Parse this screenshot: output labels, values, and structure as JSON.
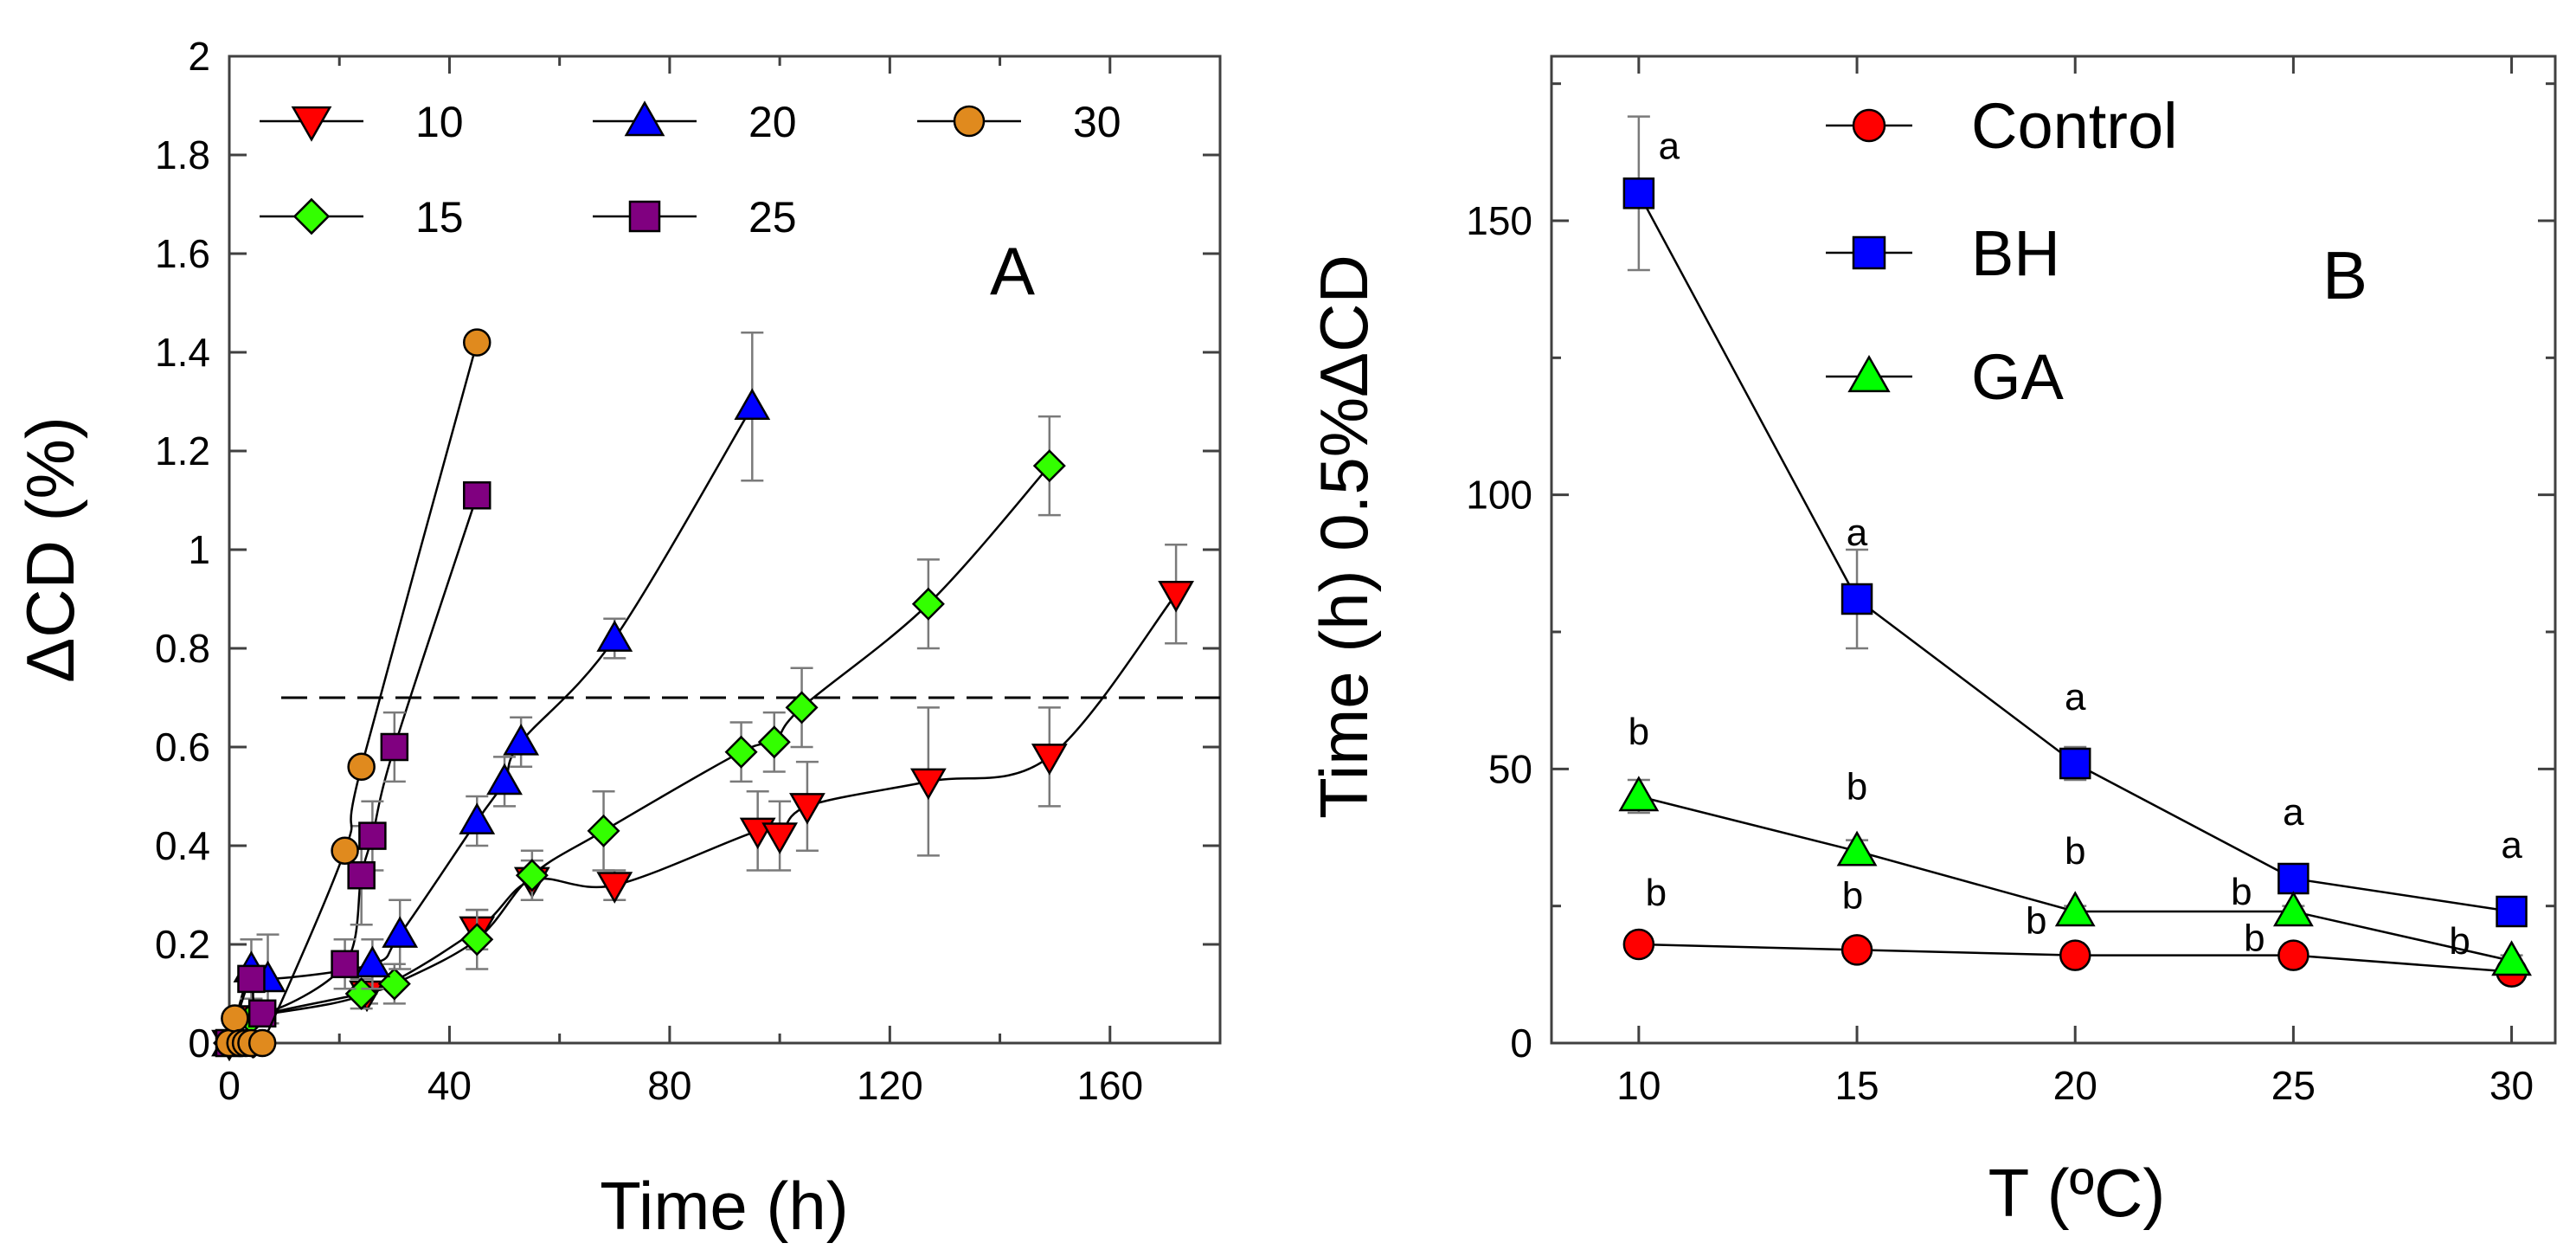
{
  "chart_data": [
    {
      "panel": "A",
      "type": "line",
      "xlabel": "Time (h)",
      "ylabel": "ΔCD (%)",
      "xlim": [
        0,
        180
      ],
      "ylim": [
        0,
        2
      ],
      "xticks": [
        0,
        40,
        80,
        120,
        160
      ],
      "xtick_labels": [
        "0",
        "40",
        "80",
        "120",
        "160"
      ],
      "yticks": [
        0,
        0.2,
        0.4,
        0.6,
        0.8,
        1,
        1.2,
        1.4,
        1.6,
        1.8,
        2
      ],
      "ytick_labels": [
        "0",
        "0.2",
        "0.4",
        "0.6",
        "0.8",
        "1",
        "1.2",
        "1.4",
        "1.6",
        "1.8",
        "2"
      ],
      "reference_line": {
        "y": 0.7,
        "style": "dashed"
      },
      "legend_position": "top",
      "grid": false,
      "series": [
        {
          "name": "10",
          "marker": "triangle-down",
          "color": "#ff0000",
          "points": [
            [
              0,
              0
            ],
            [
              4,
              0.05
            ],
            [
              25,
              0.1
            ],
            [
              45,
              0.23
            ],
            [
              55,
              0.33
            ],
            [
              70,
              0.32
            ],
            [
              96,
              0.43
            ],
            [
              100,
              0.42
            ],
            [
              105,
              0.48
            ],
            [
              127,
              0.53
            ],
            [
              149,
              0.58
            ],
            [
              172,
              0.91
            ]
          ],
          "errors": [
            0,
            0,
            0.02,
            0.04,
            0.04,
            0.03,
            0.08,
            0.07,
            0.09,
            0.15,
            0.1,
            0.1
          ]
        },
        {
          "name": "15",
          "marker": "diamond",
          "color": "#33ff00",
          "points": [
            [
              0,
              0
            ],
            [
              4,
              0.05
            ],
            [
              24,
              0.1
            ],
            [
              30,
              0.12
            ],
            [
              45,
              0.21
            ],
            [
              55,
              0.34
            ],
            [
              68,
              0.43
            ],
            [
              93,
              0.59
            ],
            [
              99,
              0.61
            ],
            [
              104,
              0.68
            ],
            [
              127,
              0.89
            ],
            [
              149,
              1.17
            ]
          ],
          "errors": [
            0,
            0,
            0.03,
            0.04,
            0.06,
            0.05,
            0.08,
            0.06,
            0.06,
            0.08,
            0.09,
            0.1
          ]
        },
        {
          "name": "20",
          "marker": "triangle-up",
          "color": "#0000ff",
          "points": [
            [
              0,
              0
            ],
            [
              4,
              0.15
            ],
            [
              7,
              0.13
            ],
            [
              26,
              0.16
            ],
            [
              31,
              0.22
            ],
            [
              45,
              0.45
            ],
            [
              50,
              0.53
            ],
            [
              53,
              0.61
            ],
            [
              70,
              0.82
            ],
            [
              95,
              1.29
            ]
          ],
          "errors": [
            0,
            0.06,
            0.09,
            0.05,
            0.07,
            0.05,
            0.05,
            0.05,
            0.04,
            0.15
          ]
        },
        {
          "name": "25",
          "marker": "square",
          "color": "#800080",
          "points": [
            [
              0,
              0
            ],
            [
              4,
              0.13
            ],
            [
              6,
              0.06
            ],
            [
              21,
              0.16
            ],
            [
              24,
              0.34
            ],
            [
              26,
              0.42
            ],
            [
              30,
              0.6
            ],
            [
              45,
              1.11
            ]
          ],
          "errors": [
            0,
            0,
            0,
            0.05,
            0.1,
            0.07,
            0.07,
            0
          ]
        },
        {
          "name": "30",
          "marker": "circle",
          "color": "#e08a1e",
          "points": [
            [
              0,
              0
            ],
            [
              1,
              0.05
            ],
            [
              2,
              0
            ],
            [
              3,
              0
            ],
            [
              4,
              0
            ],
            [
              6,
              0
            ],
            [
              21,
              0.39
            ],
            [
              24,
              0.56
            ],
            [
              45,
              1.42
            ]
          ],
          "errors": [
            0,
            0,
            0,
            0,
            0,
            0,
            0,
            0,
            0
          ]
        }
      ]
    },
    {
      "panel": "B",
      "type": "line",
      "xlabel": "T (ºC)",
      "ylabel": "Time (h) 0.5%ΔCD",
      "xlim": [
        8,
        31
      ],
      "ylim": [
        0,
        180
      ],
      "xticks": [
        10,
        15,
        20,
        25,
        30
      ],
      "xtick_labels": [
        "10",
        "15",
        "20",
        "25",
        "30"
      ],
      "yticks": [
        0,
        50,
        100,
        150
      ],
      "ytick_labels": [
        "0",
        "50",
        "100",
        "150"
      ],
      "legend_position": "top-left",
      "grid": false,
      "series": [
        {
          "name": "Control",
          "marker": "circle",
          "color": "#ff0000",
          "points": [
            [
              10,
              18
            ],
            [
              15,
              17
            ],
            [
              20,
              16
            ],
            [
              25,
              16
            ],
            [
              30,
              13
            ]
          ],
          "errors": [
            1,
            1,
            1,
            1,
            1
          ]
        },
        {
          "name": "BH",
          "marker": "square",
          "color": "#0000ff",
          "points": [
            [
              10,
              155
            ],
            [
              15,
              81
            ],
            [
              20,
              51
            ],
            [
              25,
              30
            ],
            [
              30,
              24
            ]
          ],
          "errors": [
            14,
            9,
            3,
            1,
            1
          ]
        },
        {
          "name": "GA",
          "marker": "triangle-up",
          "color": "#00ff00",
          "points": [
            [
              10,
              45
            ],
            [
              15,
              35
            ],
            [
              20,
              24
            ],
            [
              25,
              24
            ],
            [
              30,
              15
            ]
          ],
          "errors": [
            3,
            2,
            1,
            1,
            1
          ]
        }
      ],
      "significance_labels": [
        {
          "x": 10,
          "series": "BH",
          "text": "a"
        },
        {
          "x": 15,
          "series": "BH",
          "text": "a"
        },
        {
          "x": 20,
          "series": "BH",
          "text": "a"
        },
        {
          "x": 25,
          "series": "BH",
          "text": "a"
        },
        {
          "x": 30,
          "series": "BH",
          "text": "a"
        },
        {
          "x": 10,
          "series": "GA",
          "text": "b"
        },
        {
          "x": 15,
          "series": "GA",
          "text": "b"
        },
        {
          "x": 20,
          "series": "GA",
          "text": "b"
        },
        {
          "x": 25,
          "series": "GA",
          "text": "b"
        },
        {
          "x": 30,
          "series": "GA",
          "text": "b"
        },
        {
          "x": 10,
          "series": "Control",
          "text": "b"
        },
        {
          "x": 15,
          "series": "Control",
          "text": "b"
        },
        {
          "x": 20,
          "series": "Control",
          "text": "b"
        },
        {
          "x": 25,
          "series": "Control",
          "text": "b"
        }
      ]
    }
  ],
  "panel_letters": {
    "a": "A",
    "b": "B"
  }
}
